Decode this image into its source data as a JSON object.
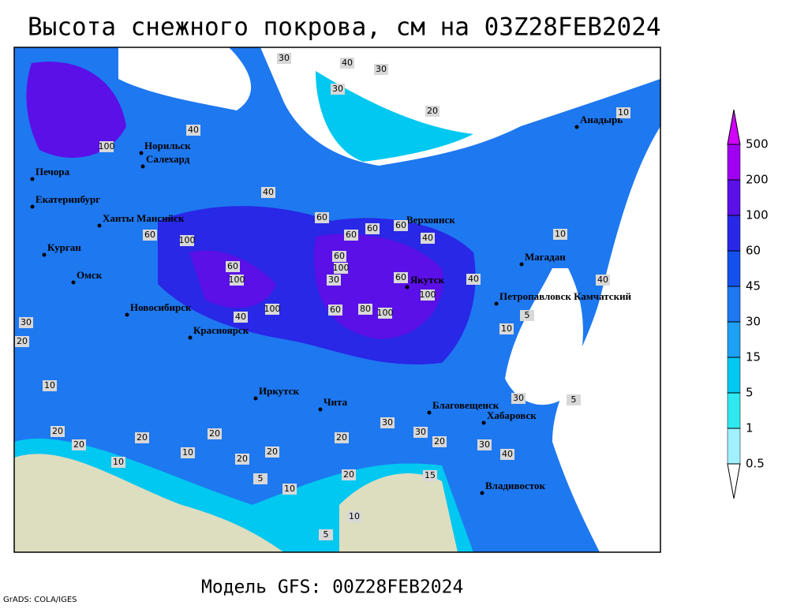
{
  "title": "Высота снежного покрова, см на 03Z28FEB2024",
  "footer": "Модель GFS: 00Z28FEB2024",
  "credit": "GrADS: COLA/IGES",
  "colorbar": {
    "levels": [
      0.5,
      1,
      5,
      15,
      30,
      45,
      60,
      100,
      200,
      500
    ],
    "colors": [
      "#ffffff",
      "#a0f0ff",
      "#30e8f0",
      "#00c8f0",
      "#1ea0f5",
      "#1e78f0",
      "#1450eb",
      "#2828e6",
      "#5a10e6",
      "#a000f0",
      "#d200ff"
    ]
  },
  "cities": [
    "Норильск",
    "Салехард",
    "Печора",
    "Екатеринбург",
    "Ханты Мансийск",
    "Курган",
    "Омск",
    "Новосибирск",
    "Красноярск",
    "Иркутск",
    "Чита",
    "Верхоянск",
    "Якутск",
    "Магадан",
    "Анадырь",
    "Петропавловск Камчатский",
    "Благовещенск",
    "Хабаровск",
    "Владивосток"
  ],
  "contour_labels": [
    30,
    40,
    30,
    30,
    20,
    100,
    40,
    40,
    60,
    60,
    60,
    60,
    40,
    60,
    100,
    60,
    100,
    60,
    100,
    30,
    60,
    100,
    100,
    80,
    60,
    100,
    40,
    30,
    20,
    40,
    10,
    5,
    10,
    10,
    40,
    30,
    5,
    30,
    40,
    30,
    20,
    30,
    20,
    20,
    10,
    20,
    20,
    5,
    10,
    20,
    15,
    10,
    5,
    20,
    10,
    20,
    10,
    20
  ]
}
